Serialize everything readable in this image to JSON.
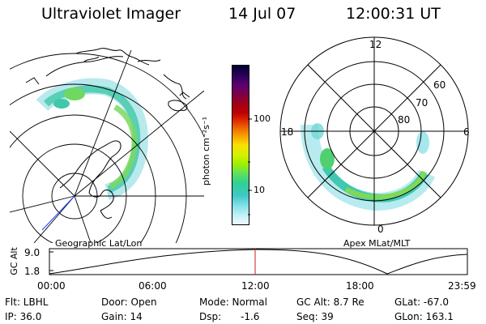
{
  "header": {
    "title": "Ultraviolet Imager",
    "date": "14 Jul 07",
    "time": "12:00:31 UT"
  },
  "colorbar": {
    "label": "photon cm⁻²s⁻¹",
    "ticks": [
      "100",
      "10"
    ],
    "colors": [
      "#000030",
      "#280058",
      "#5a0070",
      "#7a0048",
      "#a00018",
      "#c00000",
      "#e03000",
      "#f07000",
      "#f8a800",
      "#f8e000",
      "#d8f000",
      "#a0f000",
      "#60e060",
      "#30d090",
      "#40c8c8",
      "#80e0e8",
      "#c0f0f8",
      "#f0f8ff"
    ]
  },
  "left_panel": {
    "caption": "Geographic Lat/Lon"
  },
  "right_panel": {
    "caption": "Apex MLat/MLT",
    "mlt_labels": [
      "12",
      "18",
      "6",
      "0"
    ],
    "mlat_labels": [
      "60",
      "70",
      "80"
    ]
  },
  "altitude_plot": {
    "ylabel": "GC Alt",
    "y_ticks": [
      "9.0",
      "1.8"
    ],
    "x_ticks": [
      "00:00",
      "06:00",
      "12:00",
      "18:00",
      "23:59"
    ]
  },
  "info": {
    "filter": "Flt: LBHL",
    "ip": "IP: 36.0",
    "door": "Door: Open",
    "gain": "Gain: 14",
    "mode": "Mode: Normal",
    "dsp_label": "Dsp:",
    "dsp_value": "-1.6",
    "gc_alt": "GC Alt: 8.7 Re",
    "seq": "Seq: 39",
    "glat": "GLat: -67.0",
    "glon": "GLon: 163.1"
  }
}
